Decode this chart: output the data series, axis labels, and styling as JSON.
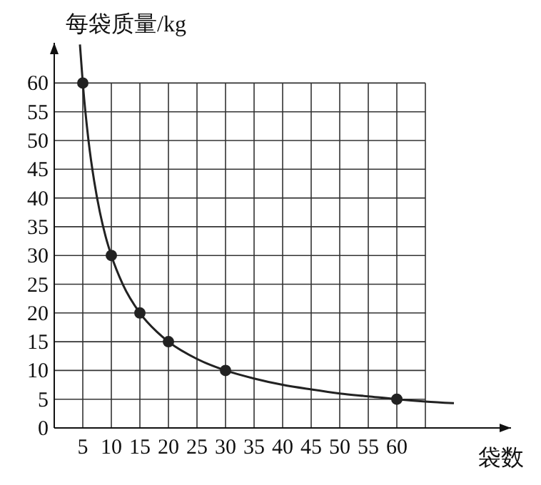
{
  "chart_data": {
    "type": "line",
    "xlabel": "袋数",
    "ylabel": "每袋质量/kg",
    "xlim": [
      0,
      80
    ],
    "ylim": [
      0,
      67
    ],
    "xticks": [
      5,
      10,
      15,
      20,
      25,
      30,
      35,
      40,
      45,
      50,
      55,
      60,
      {
        "value": 65,
        "label": null
      }
    ],
    "yticks": [
      0,
      5,
      10,
      15,
      20,
      25,
      30,
      35,
      40,
      45,
      50,
      55,
      60
    ],
    "grid": true,
    "series": [
      {
        "marker": "none",
        "color": "#222222",
        "x": [
          4.5,
          5,
          6,
          7,
          8,
          9,
          10,
          12,
          15,
          18,
          20,
          25,
          30,
          35,
          40,
          45,
          50,
          55,
          60,
          65,
          70
        ],
        "values": [
          66.7,
          60,
          50,
          42.9,
          37.5,
          33.3,
          30,
          25,
          20,
          16.7,
          15,
          12,
          10,
          8.6,
          7.5,
          6.7,
          6,
          5.5,
          5,
          4.6,
          4.3
        ]
      },
      {
        "type": "scatter",
        "marker": "circle",
        "color": "#222222",
        "x": [
          5,
          10,
          15,
          20,
          30,
          60
        ],
        "values": [
          60,
          30,
          20,
          15,
          10,
          5
        ]
      }
    ]
  }
}
